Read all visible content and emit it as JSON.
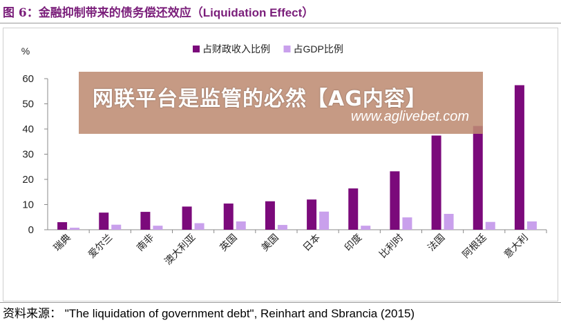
{
  "figure": {
    "title_zh": "图 6：金融抑制带来的债务偿还效应",
    "title_en": "（Liquidation Effect）"
  },
  "watermark": {
    "text": "网联平台是监管的必然【AG内容】",
    "url": "www.aglivebet.com"
  },
  "source": {
    "label": "资料来源：",
    "text": "\"The liquidation of government debt\", Reinhart and Sbrancia (2015)"
  },
  "chart_data": {
    "type": "bar",
    "ylabel": "%",
    "ylim": [
      0,
      60
    ],
    "yticks": [
      0,
      10,
      20,
      30,
      40,
      50,
      60
    ],
    "legend_position": "top",
    "categories": [
      "瑞典",
      "爱尔兰",
      "南非",
      "澳大利亚",
      "英国",
      "美国",
      "日本",
      "印度",
      "比利时",
      "法国",
      "阿根廷",
      "意大利"
    ],
    "series": [
      {
        "name": "占财政收入比例",
        "color": "#7b0a7b",
        "values": [
          3.0,
          6.8,
          7.1,
          9.2,
          10.4,
          11.3,
          12.0,
          16.4,
          23.2,
          37.4,
          41.2,
          57.4
        ]
      },
      {
        "name": "占GDP比例",
        "color": "#c9a0ec",
        "values": [
          0.8,
          2.0,
          1.6,
          2.6,
          3.3,
          1.9,
          7.2,
          1.6,
          4.9,
          6.3,
          3.1,
          3.3
        ]
      }
    ]
  }
}
